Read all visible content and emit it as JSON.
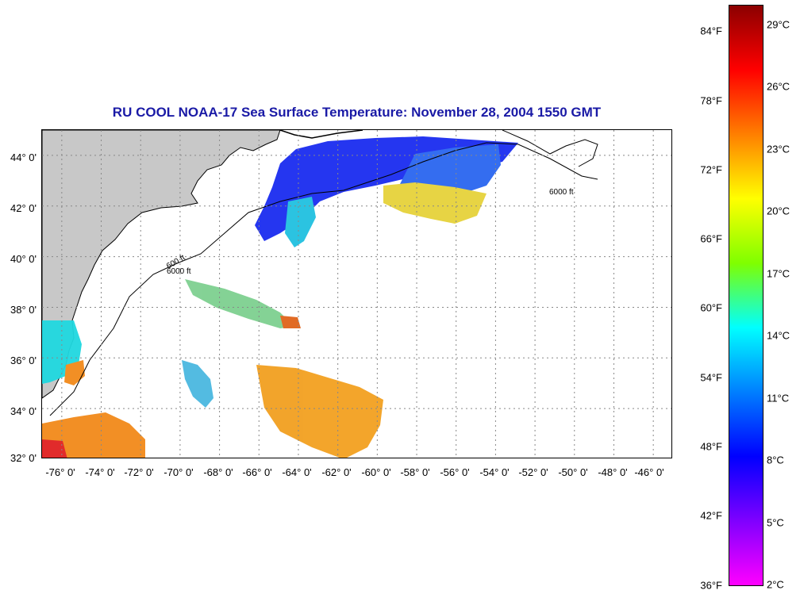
{
  "title": "RU COOL  NOAA-17  Sea Surface Temperature:  November 28, 2004 1550 GMT",
  "map": {
    "lon_range": [
      -77,
      -45
    ],
    "lat_range": [
      32,
      45
    ],
    "lat_ticks": [
      "44° 0'",
      "42° 0'",
      "40° 0'",
      "38° 0'",
      "36° 0'",
      "34° 0'",
      "32° 0'"
    ],
    "lon_ticks": [
      "-76° 0'",
      "-74° 0'",
      "-72° 0'",
      "-70° 0'",
      "-68° 0'",
      "-66° 0'",
      "-64° 0'",
      "-62° 0'",
      "-60° 0'",
      "-58° 0'",
      "-56° 0'",
      "-54° 0'",
      "-52° 0'",
      "-50° 0'",
      "-48° 0'",
      "-46° 0'"
    ],
    "contour_labels": [
      "600 ft",
      "6000 ft"
    ],
    "colors": {
      "land": "#c8c8c8",
      "grid": "#888888",
      "coast": "#000000"
    }
  },
  "colorbar": {
    "fahrenheit_ticks": [
      "84°F",
      "78°F",
      "72°F",
      "66°F",
      "60°F",
      "54°F",
      "48°F",
      "42°F",
      "36°F"
    ],
    "celsius_ticks": [
      "29°C",
      "26°C",
      "23°C",
      "20°C",
      "17°C",
      "14°C",
      "11°C",
      "8°C",
      "5°C",
      "2°C"
    ],
    "range_c": [
      2,
      30
    ],
    "gradient": [
      "#8b0000",
      "#ff0000",
      "#ff7f00",
      "#ffff00",
      "#7fff00",
      "#00ffff",
      "#007fff",
      "#0000ff",
      "#7f00ff",
      "#ff00ff"
    ]
  }
}
